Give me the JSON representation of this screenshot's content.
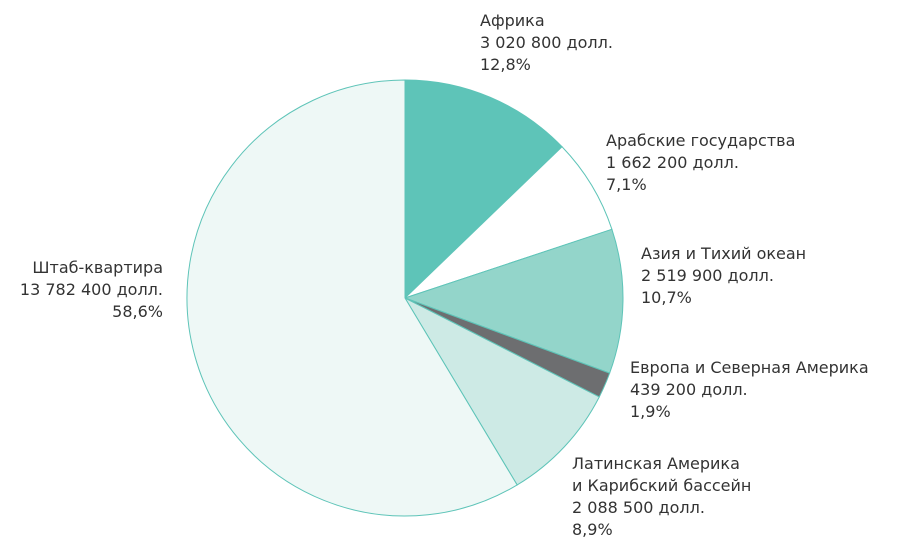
{
  "chart_data": {
    "type": "pie",
    "categories": [
      "Африка",
      "Арабские государства",
      "Азия и Тихий океан",
      "Европа и Северная Америка",
      "Латинская Америка\nи Карибский бассейн",
      "Штаб-квартира"
    ],
    "amount_labels": [
      "3 020 800 долл.",
      "1 662 200 долл.",
      "2 519 900 долл.",
      "439 200 долл.",
      "2 088 500 долл.",
      "13 782 400 долл."
    ],
    "values": [
      12.8,
      7.1,
      10.7,
      1.9,
      8.9,
      58.6
    ],
    "value_labels": [
      "12,8%",
      "7,1%",
      "10,7%",
      "1,9%",
      "8,9%",
      "58,6%"
    ],
    "colors": [
      "#5ec4b8",
      "#ffffff",
      "#93d5ca",
      "#6d6e70",
      "#cdeae5",
      "#eef8f6"
    ]
  }
}
